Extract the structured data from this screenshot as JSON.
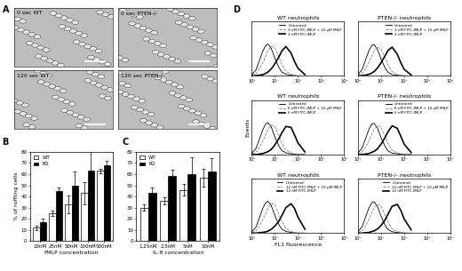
{
  "panel_labels": [
    "A",
    "B",
    "C",
    "D"
  ],
  "images": [
    {
      "label": "0 sec WT"
    },
    {
      "label": "0 sec PTEN-/-"
    },
    {
      "label": "120 sec WT"
    },
    {
      "label": "120 sec PTEN-/-"
    }
  ],
  "chart_data": [
    {
      "type": "bar",
      "xlabel": "fMLP concentration",
      "ylabel": "% of ruffling cells",
      "categories": [
        "10nM",
        "25nM",
        "50nM",
        "100nM",
        "500nM"
      ],
      "series": [
        {
          "name": "WT",
          "color": "#ffffff",
          "values": [
            12,
            25,
            33,
            43,
            63
          ],
          "errors": [
            2,
            2,
            8,
            10,
            2
          ]
        },
        {
          "name": "KO",
          "color": "#000000",
          "values": [
            17,
            45,
            50,
            63,
            68
          ],
          "errors": [
            3,
            3,
            12,
            20,
            4
          ]
        }
      ],
      "ylim": [
        0,
        80
      ],
      "yticks": [
        0,
        10,
        20,
        30,
        40,
        50,
        60,
        70,
        80
      ],
      "legend": "upper left"
    },
    {
      "type": "bar",
      "xlabel": "IL-8 concentration",
      "categories": [
        "1.25nM",
        "2.5nM",
        "5nM",
        "10nM"
      ],
      "series": [
        {
          "name": "WT",
          "color": "#ffffff",
          "values": [
            30,
            36,
            46,
            57
          ],
          "errors": [
            3,
            3,
            5,
            8
          ]
        },
        {
          "name": "KO",
          "color": "#000000",
          "values": [
            43,
            58,
            60,
            62
          ],
          "errors": [
            5,
            6,
            15,
            12
          ]
        }
      ],
      "ylim": [
        0,
        80
      ],
      "yticks": [
        0,
        10,
        20,
        30,
        40,
        50,
        60,
        70,
        80
      ],
      "legend": "upper left"
    },
    {
      "type": "line",
      "title": "WT neutrophils",
      "x": [
        1,
        1.5,
        2,
        3,
        4,
        5,
        7,
        10,
        15,
        20,
        30,
        50,
        70,
        100,
        200
      ],
      "series": [
        {
          "name": "Untreated",
          "color": "#000000",
          "line_style": "solid",
          "values": [
            4,
            18,
            42,
            78,
            95,
            100,
            86,
            55,
            26,
            12,
            5,
            2,
            1,
            0,
            0
          ]
        },
        {
          "name": "3 nM FITC-fMLP + 10 μM fMLP",
          "color": "#808080",
          "line_style": "dashed",
          "values": [
            2,
            7,
            18,
            42,
            62,
            78,
            92,
            88,
            58,
            36,
            14,
            5,
            2,
            1,
            0
          ]
        },
        {
          "name": "3 nM FITC-fMLP",
          "color": "#000000",
          "line_style": "solid",
          "values": [
            0,
            1,
            2,
            4,
            8,
            12,
            22,
            38,
            60,
            78,
            92,
            72,
            46,
            24,
            4
          ]
        }
      ],
      "log": "x",
      "xlim": [
        1,
        10000
      ],
      "ylim": [
        0,
        170
      ],
      "xticks": [
        {
          "value": 1,
          "label": "10⁰"
        },
        {
          "value": 10,
          "label": "10¹"
        },
        {
          "value": 100,
          "label": "10²"
        },
        {
          "value": 1000,
          "label": "10³"
        },
        {
          "value": 10000,
          "label": "10⁴"
        }
      ],
      "tick_labels": "x",
      "legend": "upper right"
    },
    {
      "type": "line",
      "title": "PTEN-/- neutrophils",
      "x": [
        1,
        1.5,
        2,
        3,
        4,
        5,
        7,
        10,
        15,
        20,
        30,
        50,
        70,
        100,
        200
      ],
      "series": [
        {
          "name": "Untreated",
          "color": "#000000",
          "line_style": "solid",
          "values": [
            5,
            20,
            45,
            80,
            96,
            98,
            82,
            52,
            24,
            11,
            4,
            2,
            1,
            0,
            0
          ]
        },
        {
          "name": "3 nM FITC-fMLP + 10 μM fMLP",
          "color": "#808080",
          "line_style": "dashed",
          "values": [
            2,
            8,
            20,
            44,
            64,
            80,
            90,
            84,
            55,
            34,
            13,
            5,
            2,
            1,
            0
          ]
        },
        {
          "name": "3 nM FITC-fMLP",
          "color": "#000000",
          "line_style": "solid",
          "values": [
            0,
            1,
            2,
            5,
            9,
            14,
            25,
            42,
            64,
            80,
            90,
            68,
            42,
            20,
            3
          ]
        }
      ],
      "log": "x",
      "xlim": [
        1,
        10000
      ],
      "ylim": [
        0,
        170
      ],
      "xticks": [
        {
          "value": 1,
          "label": "10⁰"
        },
        {
          "value": 10,
          "label": "10¹"
        },
        {
          "value": 100,
          "label": "10²"
        },
        {
          "value": 1000,
          "label": "10³"
        },
        {
          "value": 10000,
          "label": "10⁴"
        }
      ],
      "tick_labels": "x",
      "legend": "upper right"
    },
    {
      "type": "line",
      "title": "WT neutrophils",
      "ylabel": "Events",
      "x": [
        1,
        1.5,
        2,
        3,
        4,
        5,
        7,
        10,
        15,
        20,
        30,
        50,
        70,
        100,
        200
      ],
      "series": [
        {
          "name": "Untreated",
          "color": "#000000",
          "line_style": "solid",
          "values": [
            4,
            18,
            42,
            78,
            95,
            100,
            86,
            55,
            26,
            12,
            5,
            2,
            1,
            0,
            0
          ]
        },
        {
          "name": "6 nM FITC-fMLP + 10 μM fMLP",
          "color": "#808080",
          "line_style": "dashed",
          "values": [
            2,
            7,
            18,
            42,
            62,
            78,
            92,
            88,
            58,
            36,
            14,
            5,
            2,
            1,
            0
          ]
        },
        {
          "name": "6 nM FITC-fMLP",
          "color": "#000000",
          "line_style": "solid",
          "values": [
            0,
            0,
            1,
            3,
            6,
            9,
            16,
            30,
            50,
            68,
            88,
            85,
            62,
            36,
            8
          ]
        }
      ],
      "log": "x",
      "xlim": [
        1,
        10000
      ],
      "ylim": [
        0,
        170
      ],
      "xticks": [
        {
          "value": 1,
          "label": "10⁰"
        },
        {
          "value": 10,
          "label": "10¹"
        },
        {
          "value": 100,
          "label": "10²"
        },
        {
          "value": 1000,
          "label": "10³"
        },
        {
          "value": 10000,
          "label": "10⁴"
        }
      ],
      "tick_labels": "x",
      "legend": "upper right"
    },
    {
      "type": "line",
      "title": "PTEN-/- neutrophils",
      "x": [
        1,
        1.5,
        2,
        3,
        4,
        5,
        7,
        10,
        15,
        20,
        30,
        50,
        70,
        100,
        200
      ],
      "series": [
        {
          "name": "Untreated",
          "color": "#000000",
          "line_style": "solid",
          "values": [
            5,
            20,
            45,
            80,
            96,
            98,
            82,
            52,
            24,
            11,
            4,
            2,
            1,
            0,
            0
          ]
        },
        {
          "name": "6 nM FITC-fMLP + 10 μM fMLP",
          "color": "#808080",
          "line_style": "dashed",
          "values": [
            2,
            8,
            20,
            44,
            64,
            80,
            90,
            84,
            55,
            34,
            13,
            5,
            2,
            1,
            0
          ]
        },
        {
          "name": "6 nM FITC-fMLP",
          "color": "#000000",
          "line_style": "solid",
          "values": [
            0,
            0,
            1,
            3,
            7,
            10,
            18,
            33,
            54,
            72,
            90,
            82,
            58,
            32,
            6
          ]
        }
      ],
      "log": "x",
      "xlim": [
        1,
        10000
      ],
      "ylim": [
        0,
        170
      ],
      "xticks": [
        {
          "value": 1,
          "label": "10⁰"
        },
        {
          "value": 10,
          "label": "10¹"
        },
        {
          "value": 100,
          "label": "10²"
        },
        {
          "value": 1000,
          "label": "10³"
        },
        {
          "value": 10000,
          "label": "10⁴"
        }
      ],
      "tick_labels": "x",
      "legend": "upper right"
    },
    {
      "type": "line",
      "title": "WT neutrophils",
      "xlabel": "FL1 fluorescence",
      "x": [
        1,
        1.5,
        2,
        3,
        4,
        5,
        7,
        10,
        15,
        20,
        30,
        50,
        70,
        100,
        200
      ],
      "series": [
        {
          "name": "Untreated",
          "color": "#000000",
          "line_style": "solid",
          "values": [
            4,
            18,
            42,
            78,
            95,
            100,
            86,
            55,
            26,
            12,
            5,
            2,
            1,
            0,
            0
          ]
        },
        {
          "name": "12 nM FITC-fMLP + 10 μM fMLP",
          "color": "#808080",
          "line_style": "dashed",
          "values": [
            2,
            7,
            18,
            42,
            62,
            78,
            92,
            88,
            58,
            36,
            14,
            5,
            2,
            1,
            0
          ]
        },
        {
          "name": "12 nM FITC-fMLP",
          "color": "#000000",
          "line_style": "solid",
          "values": [
            0,
            0,
            1,
            2,
            4,
            6,
            12,
            22,
            38,
            55,
            80,
            92,
            78,
            50,
            12
          ]
        }
      ],
      "log": "x",
      "xlim": [
        1,
        10000
      ],
      "ylim": [
        0,
        170
      ],
      "xticks": [
        {
          "value": 1,
          "label": "10⁰"
        },
        {
          "value": 10,
          "label": "10¹"
        },
        {
          "value": 100,
          "label": "10²"
        },
        {
          "value": 1000,
          "label": "10³"
        },
        {
          "value": 10000,
          "label": "10⁴"
        }
      ],
      "tick_labels": "x",
      "legend": "upper right"
    },
    {
      "type": "line",
      "title": "PTEN-/- neutrophils",
      "x": [
        1,
        1.5,
        2,
        3,
        4,
        5,
        7,
        10,
        15,
        20,
        30,
        50,
        70,
        100,
        200
      ],
      "series": [
        {
          "name": "Untreated",
          "color": "#000000",
          "line_style": "solid",
          "values": [
            5,
            20,
            45,
            80,
            96,
            98,
            82,
            52,
            24,
            11,
            4,
            2,
            1,
            0,
            0
          ]
        },
        {
          "name": "12 nM FITC-fMLP + 10 μM fMLP",
          "color": "#808080",
          "line_style": "dashed",
          "values": [
            2,
            8,
            20,
            44,
            64,
            80,
            90,
            84,
            55,
            34,
            13,
            5,
            2,
            1,
            0
          ]
        },
        {
          "name": "12 nM FITC-fMLP",
          "color": "#000000",
          "line_style": "solid",
          "values": [
            0,
            0,
            1,
            2,
            5,
            7,
            13,
            24,
            42,
            60,
            84,
            90,
            72,
            44,
            10
          ]
        }
      ],
      "log": "x",
      "xlim": [
        1,
        10000
      ],
      "ylim": [
        0,
        170
      ],
      "xticks": [
        {
          "value": 1,
          "label": "10⁰"
        },
        {
          "value": 10,
          "label": "10¹"
        },
        {
          "value": 100,
          "label": "10²"
        },
        {
          "value": 1000,
          "label": "10³"
        },
        {
          "value": 10000,
          "label": "10⁴"
        }
      ],
      "tick_labels": "x",
      "legend": "upper right"
    }
  ]
}
